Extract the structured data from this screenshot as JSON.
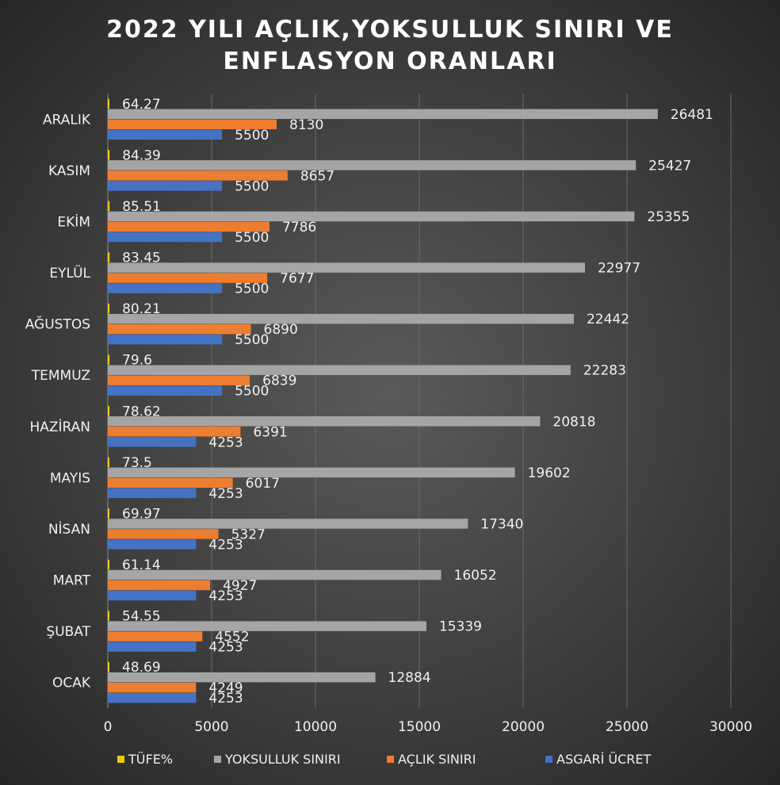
{
  "chart_data": {
    "type": "bar",
    "orientation": "horizontal",
    "title_lines": [
      "2022 YILI AÇLIK,YOKSULLUK SINIRI VE",
      "ENFLASYON ORANLARI"
    ],
    "categories": [
      "OCAK",
      "ŞUBAT",
      "MART",
      "NİSAN",
      "MAYIS",
      "HAZİRAN",
      "TEMMUZ",
      "AĞUSTOS",
      "EYLÜL",
      "EKİM",
      "KASIM",
      "ARALIK"
    ],
    "series": [
      {
        "name": "TÜFE%",
        "color": "#f2c80f",
        "values": [
          48.69,
          54.55,
          61.14,
          69.97,
          73.5,
          78.62,
          79.6,
          80.21,
          83.45,
          85.51,
          84.39,
          64.27
        ]
      },
      {
        "name": "YOKSULLUK SINIRI",
        "color": "#a5a5a5",
        "values": [
          12884,
          15339,
          16052,
          17340,
          19602,
          20818,
          22283,
          22442,
          22977,
          25355,
          25427,
          26481
        ]
      },
      {
        "name": "AÇLIK SINIRI",
        "color": "#ed7d31",
        "values": [
          4249,
          4552,
          4927,
          5327,
          6017,
          6391,
          6839,
          6890,
          7677,
          7786,
          8657,
          8130
        ]
      },
      {
        "name": "ASGARİ ÜCRET",
        "color": "#4472c4",
        "values": [
          4253,
          4253,
          4253,
          4253,
          4253,
          4253,
          5500,
          5500,
          5500,
          5500,
          5500,
          5500
        ]
      }
    ],
    "xlim": [
      0,
      30000
    ],
    "xticks": [
      "0",
      "5000",
      "10000",
      "15000",
      "20000",
      "25000",
      "30000"
    ],
    "grid": true,
    "legend_position": "bottom"
  }
}
